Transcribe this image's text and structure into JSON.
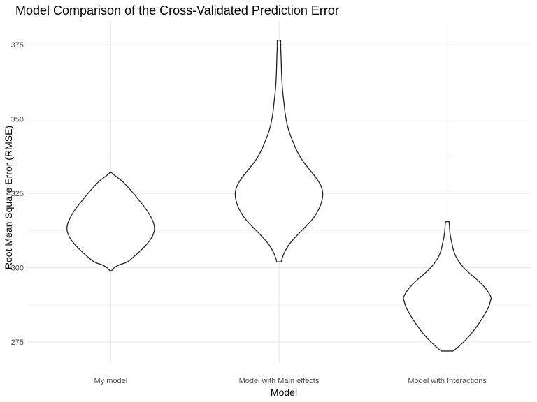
{
  "chart_data": {
    "type": "violin",
    "title": "Model Comparison of the Cross-Validated Prediction Error",
    "xlabel": "Model",
    "ylabel": "Root Mean Square Error (RMSE)",
    "categories": [
      "My model",
      "Model with Main effects",
      "Model with Interactions"
    ],
    "yticks": [
      275,
      300,
      325,
      350,
      375
    ],
    "ylim": [
      268,
      383
    ],
    "grid": true,
    "legend": "none",
    "violins": [
      {
        "category": "My model",
        "min": 299,
        "max": 332,
        "density": [
          [
            299,
            0.02
          ],
          [
            300,
            0.08
          ],
          [
            301,
            0.2
          ],
          [
            302,
            0.38
          ],
          [
            304,
            0.55
          ],
          [
            306,
            0.7
          ],
          [
            308,
            0.83
          ],
          [
            310,
            0.93
          ],
          [
            312,
            0.99
          ],
          [
            313.5,
            1.0
          ],
          [
            315,
            0.98
          ],
          [
            317,
            0.92
          ],
          [
            319,
            0.84
          ],
          [
            321,
            0.74
          ],
          [
            323,
            0.63
          ],
          [
            325,
            0.52
          ],
          [
            327,
            0.4
          ],
          [
            329,
            0.27
          ],
          [
            330.5,
            0.14
          ],
          [
            331.5,
            0.05
          ],
          [
            332,
            0.02
          ]
        ]
      },
      {
        "category": "Model with Main effects",
        "min": 302,
        "max": 376.5,
        "density": [
          [
            302,
            0.05
          ],
          [
            303,
            0.07
          ],
          [
            305,
            0.12
          ],
          [
            308,
            0.24
          ],
          [
            311,
            0.42
          ],
          [
            314,
            0.62
          ],
          [
            317,
            0.8
          ],
          [
            320,
            0.92
          ],
          [
            322.5,
            0.98
          ],
          [
            325,
            1.0
          ],
          [
            327.5,
            0.96
          ],
          [
            330,
            0.86
          ],
          [
            333,
            0.7
          ],
          [
            336,
            0.54
          ],
          [
            339,
            0.42
          ],
          [
            342,
            0.33
          ],
          [
            345,
            0.25
          ],
          [
            348,
            0.19
          ],
          [
            352,
            0.14
          ],
          [
            356,
            0.11
          ],
          [
            360,
            0.08
          ],
          [
            365,
            0.06
          ],
          [
            370,
            0.05
          ],
          [
            374,
            0.04
          ],
          [
            376.5,
            0.04
          ]
        ]
      },
      {
        "category": "Model with Interactions",
        "min": 272,
        "max": 315.5,
        "density": [
          [
            272,
            0.13
          ],
          [
            273,
            0.22
          ],
          [
            275,
            0.37
          ],
          [
            277,
            0.5
          ],
          [
            279,
            0.61
          ],
          [
            281,
            0.71
          ],
          [
            283,
            0.8
          ],
          [
            285,
            0.88
          ],
          [
            287,
            0.95
          ],
          [
            289,
            0.99
          ],
          [
            290,
            1.0
          ],
          [
            292,
            0.93
          ],
          [
            294,
            0.82
          ],
          [
            296,
            0.68
          ],
          [
            298,
            0.52
          ],
          [
            300,
            0.38
          ],
          [
            302,
            0.27
          ],
          [
            304,
            0.19
          ],
          [
            306,
            0.14
          ],
          [
            308,
            0.11
          ],
          [
            310,
            0.08
          ],
          [
            312,
            0.06
          ],
          [
            314,
            0.05
          ],
          [
            315.5,
            0.04
          ]
        ]
      }
    ]
  }
}
